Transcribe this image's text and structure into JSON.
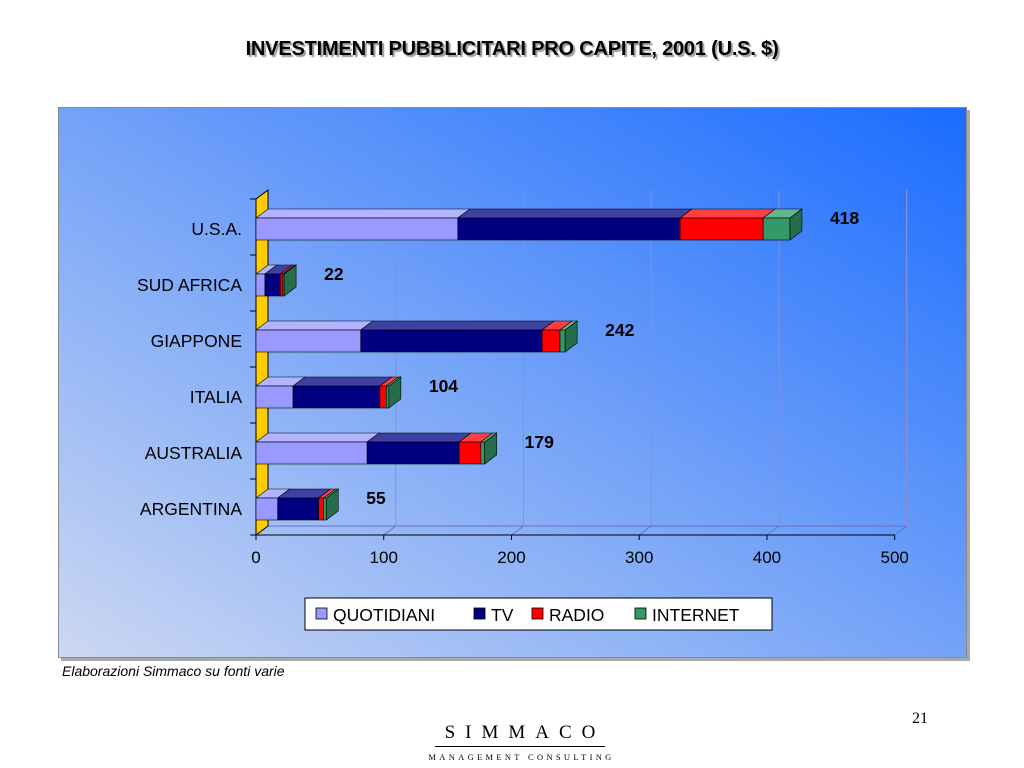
{
  "slide": {
    "title": "INVESTIMENTI PUBBLICITARI PRO CAPITE, 2001 (U.S. $)",
    "source": "Elaborazioni Simmaco su fonti varie",
    "page_number": "21",
    "logo_name": "SIMMACO",
    "logo_tagline": "MANAGEMENT CONSULTING"
  },
  "chart_data": {
    "type": "bar",
    "orientation": "horizontal",
    "stacked": true,
    "three_d": true,
    "categories": [
      "U.S.A.",
      "SUD AFRICA",
      "GIAPPONE",
      "ITALIA",
      "AUSTRALIA",
      "ARGENTINA"
    ],
    "series": [
      {
        "name": "QUOTIDIANI",
        "values": [
          158,
          7,
          82,
          29,
          87,
          17
        ],
        "color": "#9999FF"
      },
      {
        "name": "TV",
        "values": [
          174,
          12,
          142,
          68,
          72,
          32
        ],
        "color": "#000080"
      },
      {
        "name": "RADIO",
        "values": [
          65,
          2,
          14,
          5,
          17,
          4
        ],
        "color": "#FF0000"
      },
      {
        "name": "INTERNET",
        "values": [
          21,
          1,
          4,
          2,
          3,
          2
        ],
        "color": "#339966"
      }
    ],
    "totals": [
      418,
      22,
      242,
      104,
      179,
      55
    ],
    "xlim": [
      0,
      500
    ],
    "x_ticks": [
      0,
      100,
      200,
      300,
      400,
      500
    ],
    "grid": true,
    "legend": "bottom",
    "colors": {
      "background_left": "#ccd8f2",
      "background_right": "#1a6cff",
      "side_wall": "#ffcc00"
    }
  }
}
